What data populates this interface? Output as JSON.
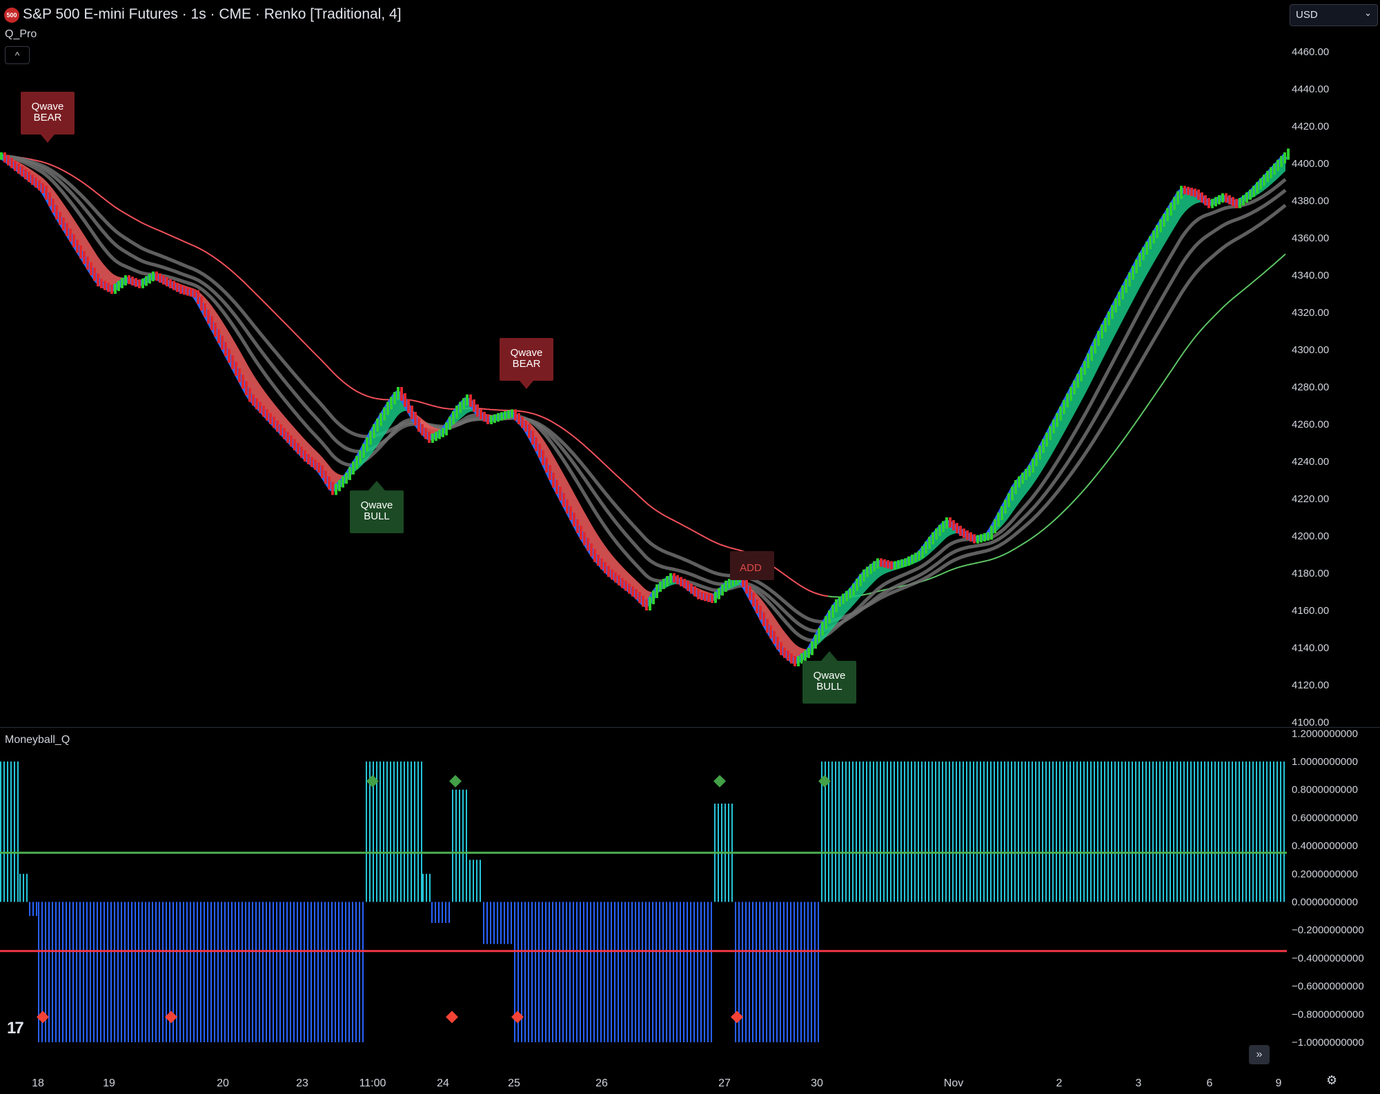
{
  "header": {
    "symbol_badge": "500",
    "title": "S&P 500 E-mini Futures · 1s · CME · Renko [Traditional, 4]",
    "indicator": "Q_Pro",
    "collapse_icon": "^",
    "currency": "USD"
  },
  "lower_pane": {
    "indicator": "Moneyball_Q"
  },
  "colors": {
    "bull_brick": "#2ed12e",
    "bear_brick": "#e0272e",
    "blue_band": "#2f6bff",
    "green_cloud": "#16c784",
    "red_cloud": "#f05a5a",
    "gray_ma": "#707070",
    "red_ma": "#f0505a",
    "green_ma": "#5cc463",
    "hist_pos": "#26c6da",
    "hist_neg": "#2962ff",
    "threshold_upper": "#4caf50",
    "threshold_lower": "#f23645"
  },
  "chart_data": [
    {
      "type": "line",
      "name": "price-pane",
      "yaxis_ticks": [
        4460,
        4440,
        4420,
        4400,
        4380,
        4360,
        4340,
        4320,
        4300,
        4280,
        4260,
        4240,
        4220,
        4200,
        4180,
        4160,
        4140,
        4120,
        4100
      ],
      "yaxis_labels": [
        "4460.00",
        "4440.00",
        "4420.00",
        "4400.00",
        "4380.00",
        "4360.00",
        "4340.00",
        "4320.00",
        "4300.00",
        "4280.00",
        "4260.00",
        "4240.00",
        "4220.00",
        "4200.00",
        "4180.00",
        "4160.00",
        "4140.00",
        "4120.00",
        "4100.00"
      ],
      "ylim": [
        4100,
        4470
      ],
      "x_ticks": [
        "18",
        "19",
        "20",
        "23",
        "11:00",
        "24",
        "25",
        "26",
        "27",
        "30",
        "Nov",
        "2",
        "3",
        "6",
        "9"
      ],
      "price_path": [
        [
          0,
          4404
        ],
        [
          30,
          4395
        ],
        [
          60,
          4386
        ],
        [
          80,
          4372
        ],
        [
          100,
          4360
        ],
        [
          120,
          4348
        ],
        [
          140,
          4336
        ],
        [
          160,
          4332
        ],
        [
          180,
          4338
        ],
        [
          200,
          4335
        ],
        [
          220,
          4340
        ],
        [
          240,
          4336
        ],
        [
          260,
          4332
        ],
        [
          280,
          4330
        ],
        [
          300,
          4316
        ],
        [
          320,
          4302
        ],
        [
          340,
          4288
        ],
        [
          360,
          4274
        ],
        [
          380,
          4266
        ],
        [
          400,
          4258
        ],
        [
          420,
          4250
        ],
        [
          440,
          4242
        ],
        [
          460,
          4236
        ],
        [
          480,
          4224
        ],
        [
          500,
          4232
        ],
        [
          520,
          4244
        ],
        [
          540,
          4258
        ],
        [
          560,
          4270
        ],
        [
          575,
          4278
        ],
        [
          590,
          4268
        ],
        [
          605,
          4258
        ],
        [
          620,
          4252
        ],
        [
          640,
          4256
        ],
        [
          660,
          4268
        ],
        [
          675,
          4274
        ],
        [
          690,
          4266
        ],
        [
          705,
          4262
        ],
        [
          720,
          4264
        ],
        [
          740,
          4266
        ],
        [
          760,
          4258
        ],
        [
          780,
          4244
        ],
        [
          800,
          4228
        ],
        [
          820,
          4214
        ],
        [
          840,
          4200
        ],
        [
          860,
          4188
        ],
        [
          880,
          4180
        ],
        [
          900,
          4174
        ],
        [
          920,
          4168
        ],
        [
          935,
          4162
        ],
        [
          950,
          4172
        ],
        [
          970,
          4178
        ],
        [
          990,
          4174
        ],
        [
          1010,
          4168
        ],
        [
          1030,
          4166
        ],
        [
          1050,
          4174
        ],
        [
          1070,
          4178
        ],
        [
          1090,
          4164
        ],
        [
          1110,
          4150
        ],
        [
          1130,
          4138
        ],
        [
          1150,
          4132
        ],
        [
          1170,
          4138
        ],
        [
          1190,
          4152
        ],
        [
          1210,
          4164
        ],
        [
          1230,
          4170
        ],
        [
          1250,
          4180
        ],
        [
          1270,
          4186
        ],
        [
          1290,
          4184
        ],
        [
          1310,
          4186
        ],
        [
          1330,
          4190
        ],
        [
          1350,
          4200
        ],
        [
          1370,
          4208
        ],
        [
          1390,
          4202
        ],
        [
          1410,
          4198
        ],
        [
          1430,
          4200
        ],
        [
          1450,
          4214
        ],
        [
          1470,
          4228
        ],
        [
          1490,
          4236
        ],
        [
          1510,
          4250
        ],
        [
          1530,
          4264
        ],
        [
          1550,
          4278
        ],
        [
          1570,
          4292
        ],
        [
          1590,
          4308
        ],
        [
          1610,
          4322
        ],
        [
          1630,
          4336
        ],
        [
          1650,
          4350
        ],
        [
          1670,
          4362
        ],
        [
          1690,
          4374
        ],
        [
          1710,
          4386
        ],
        [
          1730,
          4384
        ],
        [
          1750,
          4378
        ],
        [
          1770,
          4382
        ],
        [
          1790,
          4378
        ],
        [
          1810,
          4384
        ],
        [
          1830,
          4392
        ],
        [
          1850,
          4400
        ],
        [
          1865,
          4406
        ]
      ],
      "signals": [
        {
          "label": "Qwave\nBEAR",
          "type": "bear",
          "x": 2,
          "price": 4420
        },
        {
          "label": "Qwave\nBULL",
          "type": "bull",
          "x": 23,
          "price": 4222
        },
        {
          "label": "Qwave\nBEAR",
          "type": "bear",
          "x": 25,
          "price": 4290
        },
        {
          "label": "ADD",
          "type": "add",
          "x": 27,
          "price": 4185
        },
        {
          "label": "Qwave\nBULL",
          "type": "bull",
          "x": 30,
          "price": 4130
        }
      ]
    },
    {
      "type": "bar",
      "name": "moneyball-pane",
      "yaxis_ticks": [
        1.2,
        1.0,
        0.8,
        0.6,
        0.4,
        0.2,
        0.0,
        -0.2,
        -0.4,
        -0.6,
        -0.8,
        -1.0
      ],
      "yaxis_labels": [
        "1.2000000000",
        "1.0000000000",
        "0.8000000000",
        "0.6000000000",
        "0.4000000000",
        "0.2000000000",
        "0.0000000000",
        "−0.2000000000",
        "−0.4000000000",
        "−0.6000000000",
        "−0.8000000000",
        "−1.0000000000"
      ],
      "ylim": [
        -1.05,
        1.25
      ],
      "thresholds": {
        "upper": 0.35,
        "lower": -0.35
      },
      "segments": [
        {
          "from": 0,
          "to": 28,
          "value": 1.0
        },
        {
          "from": 28,
          "to": 42,
          "value": 0.2
        },
        {
          "from": 42,
          "to": 55,
          "value": -0.1
        },
        {
          "from": 55,
          "to": 530,
          "value": -1.0
        },
        {
          "from": 530,
          "to": 612,
          "value": 1.0
        },
        {
          "from": 612,
          "to": 625,
          "value": 0.2
        },
        {
          "from": 625,
          "to": 655,
          "value": -0.15
        },
        {
          "from": 655,
          "to": 680,
          "value": 0.8
        },
        {
          "from": 680,
          "to": 700,
          "value": 0.3
        },
        {
          "from": 700,
          "to": 745,
          "value": -0.3
        },
        {
          "from": 745,
          "to": 1035,
          "value": -1.0
        },
        {
          "from": 1035,
          "to": 1065,
          "value": 0.7
        },
        {
          "from": 1065,
          "to": 1190,
          "value": -1.0
        },
        {
          "from": 1190,
          "to": 1865,
          "value": 1.0
        }
      ],
      "bull_markers": [
        540,
        660,
        1043,
        1195
      ],
      "bear_markers": [
        62,
        248,
        655,
        750,
        1068
      ]
    }
  ]
}
